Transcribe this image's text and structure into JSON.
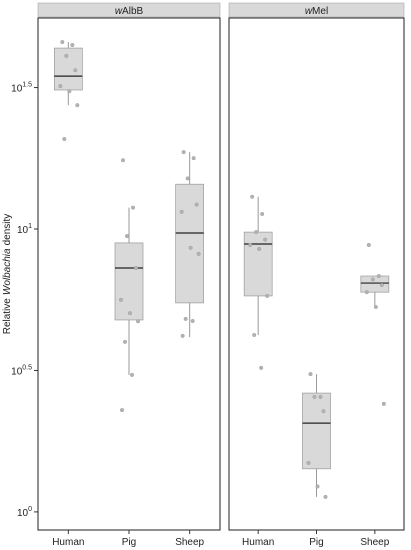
{
  "chart_data": {
    "type": "box",
    "y_label": {
      "before": "Relative",
      "italic": "Wolbachia",
      "after": "density"
    },
    "log": true,
    "ylim": [
      0.863,
      55.7
    ],
    "yticks": [
      {
        "value": 1,
        "label": "10",
        "exponent": "0"
      },
      {
        "value": 3.162,
        "label": "10",
        "exponent": "0.5"
      },
      {
        "value": 10,
        "label": "10",
        "exponent": "1"
      },
      {
        "value": 31.62,
        "label": "10",
        "exponent": "1.5"
      }
    ],
    "box_color": "#d9d9d9",
    "point_color": "#b3b3b3",
    "panels": [
      {
        "title": {
          "italic": "w",
          "text": "AlbB"
        },
        "groups": [
          {
            "name": "Human",
            "whisker_low": 27.4,
            "q1": 31.0,
            "median": 34.7,
            "q3": 43.6,
            "whisker_high": 45.8,
            "points": [
              45.8,
              44.7,
              40.9,
              36.4,
              32.0,
              30.7,
              27.4,
              20.8
            ]
          },
          {
            "name": "Pig",
            "whisker_low": 3.05,
            "q1": 4.77,
            "median": 7.28,
            "q3": 8.93,
            "whisker_high": 11.9,
            "points": [
              17.5,
              11.9,
              9.44,
              7.28,
              5.62,
              5.04,
              4.72,
              3.99,
              3.05,
              2.29
            ]
          },
          {
            "name": "Sheep",
            "whisker_low": 4.15,
            "q1": 5.48,
            "median": 9.68,
            "q3": 14.4,
            "whisker_high": 18.7,
            "points": [
              18.7,
              17.8,
              15.1,
              12.2,
              11.5,
              8.58,
              8.17,
              4.81,
              4.73,
              4.19
            ]
          }
        ]
      },
      {
        "title": {
          "italic": "w",
          "text": "Mel"
        },
        "groups": [
          {
            "name": "Human",
            "whisker_low": 4.22,
            "q1": 5.8,
            "median": 8.85,
            "q3": 9.75,
            "whisker_high": 13.0,
            "points": [
              13.0,
              11.3,
              9.75,
              9.17,
              8.78,
              8.5,
              5.8,
              4.22,
              3.23
            ]
          },
          {
            "name": "Pig",
            "whisker_low": 1.13,
            "q1": 1.42,
            "median": 2.06,
            "q3": 2.63,
            "whisker_high": 3.07,
            "points": [
              3.07,
              2.55,
              2.55,
              2.27,
              1.49,
              1.23,
              1.13
            ]
          },
          {
            "name": "Sheep",
            "whisker_low": 5.3,
            "q1": 5.98,
            "median": 6.44,
            "q3": 6.82,
            "whisker_high": 6.82,
            "points": [
              8.78,
              6.82,
              6.63,
              6.34,
              5.98,
              5.3,
              2.41
            ]
          }
        ]
      }
    ]
  }
}
